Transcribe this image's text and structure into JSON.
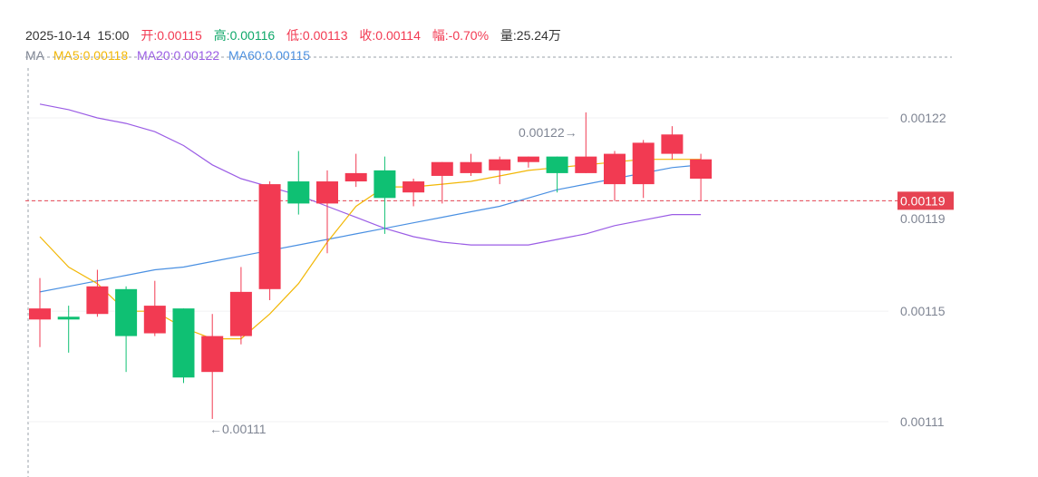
{
  "header": {
    "datetime": "2025-10-14  15:00",
    "open": "开:0.00115",
    "high": "高:0.00116",
    "low": "低:0.00113",
    "close": "收:0.00114",
    "amplitude": "幅:-0.70%",
    "volume": "量:25.24万"
  },
  "ma_legend": {
    "label": "MA",
    "ma5": "MA5:0.00118",
    "ma20": "MA20:0.00122",
    "ma60": "MA60:0.00115"
  },
  "colors": {
    "up": "#f23a52",
    "down": "#0fc073",
    "ma5": "#f2b705",
    "ma20": "#9b5de5",
    "ma60": "#4a90e2",
    "text_gray": "#7f8593",
    "current_price": "#e64352"
  },
  "chart_data": {
    "type": "candlestick",
    "y_ticks": [
      "0.00122",
      "0.00119",
      "0.00115",
      "0.00111"
    ],
    "current_price": "0.00119",
    "max_marker": "0.00122→",
    "min_marker": "←0.00111",
    "candles": [
      {
        "o": 0.001147,
        "c": 0.001151,
        "h": 0.001162,
        "l": 0.001137
      },
      {
        "o": 0.001148,
        "c": 0.001147,
        "h": 0.001152,
        "l": 0.001135
      },
      {
        "o": 0.001149,
        "c": 0.001159,
        "h": 0.001165,
        "l": 0.001148
      },
      {
        "o": 0.001158,
        "c": 0.001141,
        "h": 0.001159,
        "l": 0.001128
      },
      {
        "o": 0.001142,
        "c": 0.001152,
        "h": 0.001161,
        "l": 0.001141
      },
      {
        "o": 0.001151,
        "c": 0.001126,
        "h": 0.001151,
        "l": 0.001124
      },
      {
        "o": 0.001128,
        "c": 0.001141,
        "h": 0.001149,
        "l": 0.001111
      },
      {
        "o": 0.001141,
        "c": 0.001157,
        "h": 0.001166,
        "l": 0.001138
      },
      {
        "o": 0.001158,
        "c": 0.001196,
        "h": 0.001197,
        "l": 0.001154
      },
      {
        "o": 0.001197,
        "c": 0.001189,
        "h": 0.001208,
        "l": 0.001185
      },
      {
        "o": 0.001189,
        "c": 0.001197,
        "h": 0.001201,
        "l": 0.001171
      },
      {
        "o": 0.001197,
        "c": 0.0012,
        "h": 0.001207,
        "l": 0.001195
      },
      {
        "o": 0.001201,
        "c": 0.001191,
        "h": 0.001206,
        "l": 0.001178
      },
      {
        "o": 0.001193,
        "c": 0.001197,
        "h": 0.001198,
        "l": 0.001188
      },
      {
        "o": 0.001199,
        "c": 0.001204,
        "h": 0.001204,
        "l": 0.001189
      },
      {
        "o": 0.0012,
        "c": 0.001204,
        "h": 0.001207,
        "l": 0.001199
      },
      {
        "o": 0.001201,
        "c": 0.001205,
        "h": 0.001206,
        "l": 0.001196
      },
      {
        "o": 0.001204,
        "c": 0.001206,
        "h": 0.001206,
        "l": 0.001202
      },
      {
        "o": 0.001206,
        "c": 0.0012,
        "h": 0.001206,
        "l": 0.001193
      },
      {
        "o": 0.0012,
        "c": 0.001206,
        "h": 0.001222,
        "l": 0.0012
      },
      {
        "o": 0.001196,
        "c": 0.001207,
        "h": 0.001208,
        "l": 0.00119
      },
      {
        "o": 0.001196,
        "c": 0.001211,
        "h": 0.001212,
        "l": 0.001191
      },
      {
        "o": 0.001207,
        "c": 0.001214,
        "h": 0.001217,
        "l": 0.001205
      },
      {
        "o": 0.001198,
        "c": 0.001205,
        "h": 0.001207,
        "l": 0.00119
      }
    ],
    "ma5": [
      0.001177,
      0.001166,
      0.00116,
      0.00115,
      0.00115,
      0.001144,
      0.00114,
      0.00114,
      0.001149,
      0.00116,
      0.001175,
      0.001188,
      0.001195,
      0.001195,
      0.001196,
      0.001197,
      0.001199,
      0.001201,
      0.001202,
      0.001203,
      0.001204,
      0.001205,
      0.001205,
      0.001205
    ],
    "ma20": [
      0.001225,
      0.001223,
      0.00122,
      0.001218,
      0.001215,
      0.00121,
      0.001203,
      0.001198,
      0.001195,
      0.001192,
      0.001188,
      0.001184,
      0.00118,
      0.001177,
      0.001175,
      0.001174,
      0.001174,
      0.001174,
      0.001176,
      0.001178,
      0.001181,
      0.001183,
      0.001185,
      0.001185
    ],
    "ma60": [
      0.001157,
      0.001159,
      0.001161,
      0.001163,
      0.001165,
      0.001166,
      0.001168,
      0.00117,
      0.001172,
      0.001174,
      0.001176,
      0.001178,
      0.00118,
      0.001182,
      0.001184,
      0.001186,
      0.001188,
      0.001191,
      0.001194,
      0.001196,
      0.001198,
      0.0012,
      0.001202,
      0.001203
    ]
  }
}
